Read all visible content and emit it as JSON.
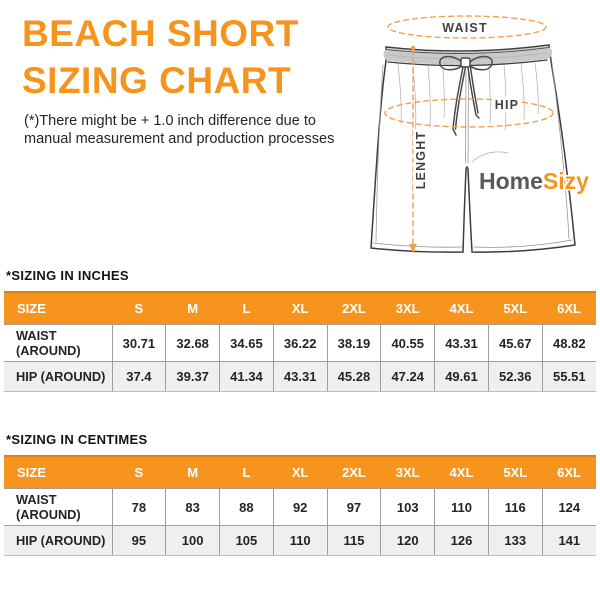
{
  "colors": {
    "accent_orange": "#F7941D",
    "dash_orange": "#F0A052",
    "title_text": "#F7941D",
    "body_text": "#252525",
    "logo_gray": "#58595B",
    "row_alt_bg": "#efefef",
    "table_border": "#9e9e9e"
  },
  "header": {
    "title_line1": "BEACH SHORT",
    "title_line2": "SIZING CHART",
    "disclaimer_line1": "(*)There might be + 1.0 inch difference due to",
    "disclaimer_line2": "manual measurement and production processes"
  },
  "illustration": {
    "waist_label": "WAIST",
    "hip_label": "HIP",
    "length_label": "LENGHT",
    "logo_part1": "Home",
    "logo_part2": "Sizy"
  },
  "tables": [
    {
      "title": "*SIZING IN INCHES",
      "columns": [
        "SIZE",
        "S",
        "M",
        "L",
        "XL",
        "2XL",
        "3XL",
        "4XL",
        "5XL",
        "6XL"
      ],
      "rows": [
        {
          "label": "WAIST (AROUND)",
          "values": [
            "30.71",
            "32.68",
            "34.65",
            "36.22",
            "38.19",
            "40.55",
            "43.31",
            "45.67",
            "48.82"
          ]
        },
        {
          "label": "HIP (AROUND)",
          "values": [
            "37.4",
            "39.37",
            "41.34",
            "43.31",
            "45.28",
            "47.24",
            "49.61",
            "52.36",
            "55.51"
          ]
        }
      ]
    },
    {
      "title": "*SIZING IN CENTIMES",
      "columns": [
        "SIZE",
        "S",
        "M",
        "L",
        "XL",
        "2XL",
        "3XL",
        "4XL",
        "5XL",
        "6XL"
      ],
      "rows": [
        {
          "label": "WAIST (AROUND)",
          "values": [
            "78",
            "83",
            "88",
            "92",
            "97",
            "103",
            "110",
            "116",
            "124"
          ]
        },
        {
          "label": "HIP (AROUND)",
          "values": [
            "95",
            "100",
            "105",
            "110",
            "115",
            "120",
            "126",
            "133",
            "141"
          ]
        }
      ]
    }
  ]
}
